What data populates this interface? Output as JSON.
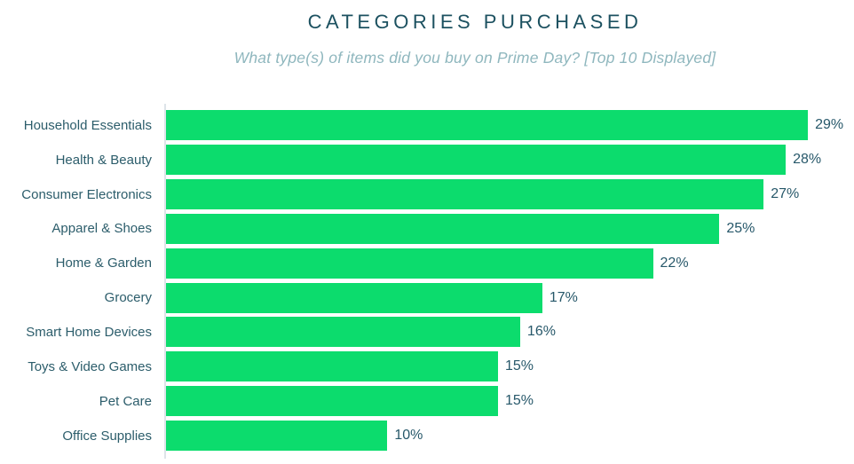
{
  "chart_data": {
    "type": "bar",
    "orientation": "horizontal",
    "title": "CATEGORIES PURCHASED",
    "subtitle": "What type(s) of items did you buy on Prime Day? [Top 10 Displayed]",
    "categories": [
      "Household Essentials",
      "Health & Beauty",
      "Consumer Electronics",
      "Apparel & Shoes",
      "Home & Garden",
      "Grocery",
      "Smart Home Devices",
      "Toys & Video Games",
      "Pet Care",
      "Office Supplies"
    ],
    "values": [
      29,
      28,
      27,
      25,
      22,
      17,
      16,
      15,
      15,
      10
    ],
    "value_labels": [
      "29%",
      "28%",
      "27%",
      "25%",
      "22%",
      "17%",
      "16%",
      "15%",
      "15%",
      "10%"
    ],
    "xlim": [
      0,
      30
    ],
    "unit": "%",
    "grid": false,
    "legend": "none",
    "colors": {
      "bar": "#0cdc6d",
      "title": "#1c5160",
      "subtitle": "#8fb7be",
      "label": "#2c5d6b",
      "value": "#27586a",
      "axis_line": "#dde4e9",
      "background": "#ffffff"
    }
  }
}
